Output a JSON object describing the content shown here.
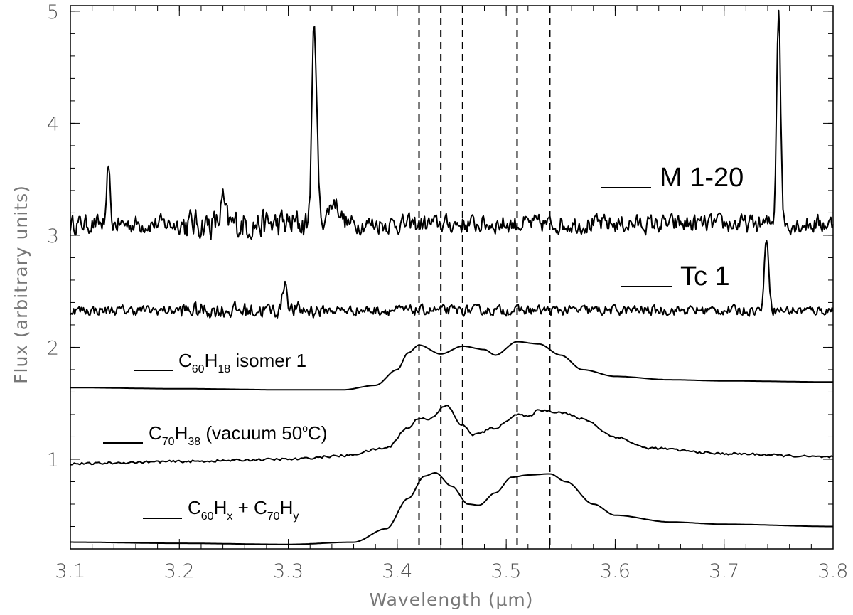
{
  "chart_data": {
    "type": "line",
    "title": "",
    "xlabel": "Wavelength (μm)",
    "ylabel": "Flux (arbitrary units)",
    "xlim": [
      3.1,
      3.8
    ],
    "ylim": [
      0.2,
      5.05
    ],
    "x_ticks": [
      "3.1",
      "3.2",
      "3.3",
      "3.4",
      "3.5",
      "3.6",
      "3.7",
      "3.8"
    ],
    "y_ticks": [
      "1",
      "2",
      "3",
      "4",
      "5"
    ],
    "vertical_lines": [
      3.42,
      3.44,
      3.46,
      3.51,
      3.54
    ],
    "series": [
      {
        "key": "m120",
        "name": "M 1-20",
        "baseline": 3.1,
        "noise": 0.075,
        "features": [
          [
            3.135,
            0.55,
            0.0012
          ],
          [
            3.324,
            1.8,
            0.0022
          ],
          [
            3.342,
            0.2,
            0.005
          ],
          [
            3.75,
            1.95,
            0.0018
          ],
          [
            3.24,
            0.2,
            0.002
          ]
        ],
        "points": [
          [
            3.1,
            3.1
          ],
          [
            3.2,
            3.1
          ],
          [
            3.3,
            3.2
          ],
          [
            3.324,
            4.95
          ],
          [
            3.335,
            3.3
          ],
          [
            3.35,
            3.0
          ],
          [
            3.4,
            3.1
          ],
          [
            3.5,
            3.1
          ],
          [
            3.6,
            3.1
          ],
          [
            3.7,
            3.15
          ],
          [
            3.75,
            5.05
          ],
          [
            3.8,
            3.1
          ]
        ]
      },
      {
        "key": "tc1",
        "name": "Tc 1",
        "baseline": 2.33,
        "noise": 0.04,
        "features": [
          [
            3.297,
            0.27,
            0.002
          ],
          [
            3.739,
            0.65,
            0.002
          ]
        ],
        "points": [
          [
            3.1,
            2.33
          ],
          [
            3.2,
            2.33
          ],
          [
            3.297,
            2.6
          ],
          [
            3.4,
            2.33
          ],
          [
            3.5,
            2.33
          ],
          [
            3.6,
            2.33
          ],
          [
            3.739,
            2.98
          ],
          [
            3.8,
            2.33
          ]
        ]
      },
      {
        "key": "c60h18",
        "name_main": "C",
        "name_sub1": "60",
        "name_h": "H",
        "name_sub2": "18",
        "name_rest": " isomer 1",
        "points": [
          [
            3.1,
            1.64
          ],
          [
            3.2,
            1.63
          ],
          [
            3.3,
            1.62
          ],
          [
            3.35,
            1.62
          ],
          [
            3.38,
            1.66
          ],
          [
            3.4,
            1.8
          ],
          [
            3.41,
            1.95
          ],
          [
            3.42,
            2.02
          ],
          [
            3.44,
            1.94
          ],
          [
            3.46,
            2.01
          ],
          [
            3.48,
            1.98
          ],
          [
            3.49,
            1.93
          ],
          [
            3.51,
            2.05
          ],
          [
            3.53,
            2.03
          ],
          [
            3.55,
            1.93
          ],
          [
            3.57,
            1.8
          ],
          [
            3.6,
            1.74
          ],
          [
            3.65,
            1.71
          ],
          [
            3.7,
            1.7
          ],
          [
            3.8,
            1.69
          ]
        ]
      },
      {
        "key": "c70h38",
        "name_main": "C",
        "name_sub1": "70",
        "name_h": "H",
        "name_sub2": "38",
        "name_rest1": " (vacuum 50",
        "name_sup": "o",
        "name_rest2": "C)",
        "noise": 0.01,
        "points": [
          [
            3.1,
            0.96
          ],
          [
            3.2,
            0.98
          ],
          [
            3.3,
            1.0
          ],
          [
            3.35,
            1.03
          ],
          [
            3.39,
            1.1
          ],
          [
            3.41,
            1.28
          ],
          [
            3.42,
            1.37
          ],
          [
            3.43,
            1.36
          ],
          [
            3.445,
            1.48
          ],
          [
            3.46,
            1.3
          ],
          [
            3.47,
            1.22
          ],
          [
            3.49,
            1.28
          ],
          [
            3.51,
            1.4
          ],
          [
            3.52,
            1.38
          ],
          [
            3.53,
            1.44
          ],
          [
            3.55,
            1.42
          ],
          [
            3.57,
            1.36
          ],
          [
            3.6,
            1.2
          ],
          [
            3.63,
            1.1
          ],
          [
            3.7,
            1.05
          ],
          [
            3.8,
            1.02
          ]
        ]
      },
      {
        "key": "c60c70",
        "name_main": "C",
        "name_sub1": "60",
        "name_h": "H",
        "name_sub2": "x",
        "name_plus": " + C",
        "name_sub3": "70",
        "name_h2": "H",
        "name_sub4": "y",
        "points": [
          [
            3.1,
            0.26
          ],
          [
            3.2,
            0.25
          ],
          [
            3.3,
            0.24
          ],
          [
            3.36,
            0.26
          ],
          [
            3.39,
            0.38
          ],
          [
            3.41,
            0.65
          ],
          [
            3.425,
            0.85
          ],
          [
            3.435,
            0.88
          ],
          [
            3.45,
            0.76
          ],
          [
            3.465,
            0.6
          ],
          [
            3.475,
            0.59
          ],
          [
            3.49,
            0.7
          ],
          [
            3.505,
            0.84
          ],
          [
            3.52,
            0.86
          ],
          [
            3.54,
            0.87
          ],
          [
            3.555,
            0.8
          ],
          [
            3.58,
            0.6
          ],
          [
            3.6,
            0.5
          ],
          [
            3.65,
            0.44
          ],
          [
            3.7,
            0.42
          ],
          [
            3.8,
            0.4
          ]
        ]
      }
    ]
  }
}
